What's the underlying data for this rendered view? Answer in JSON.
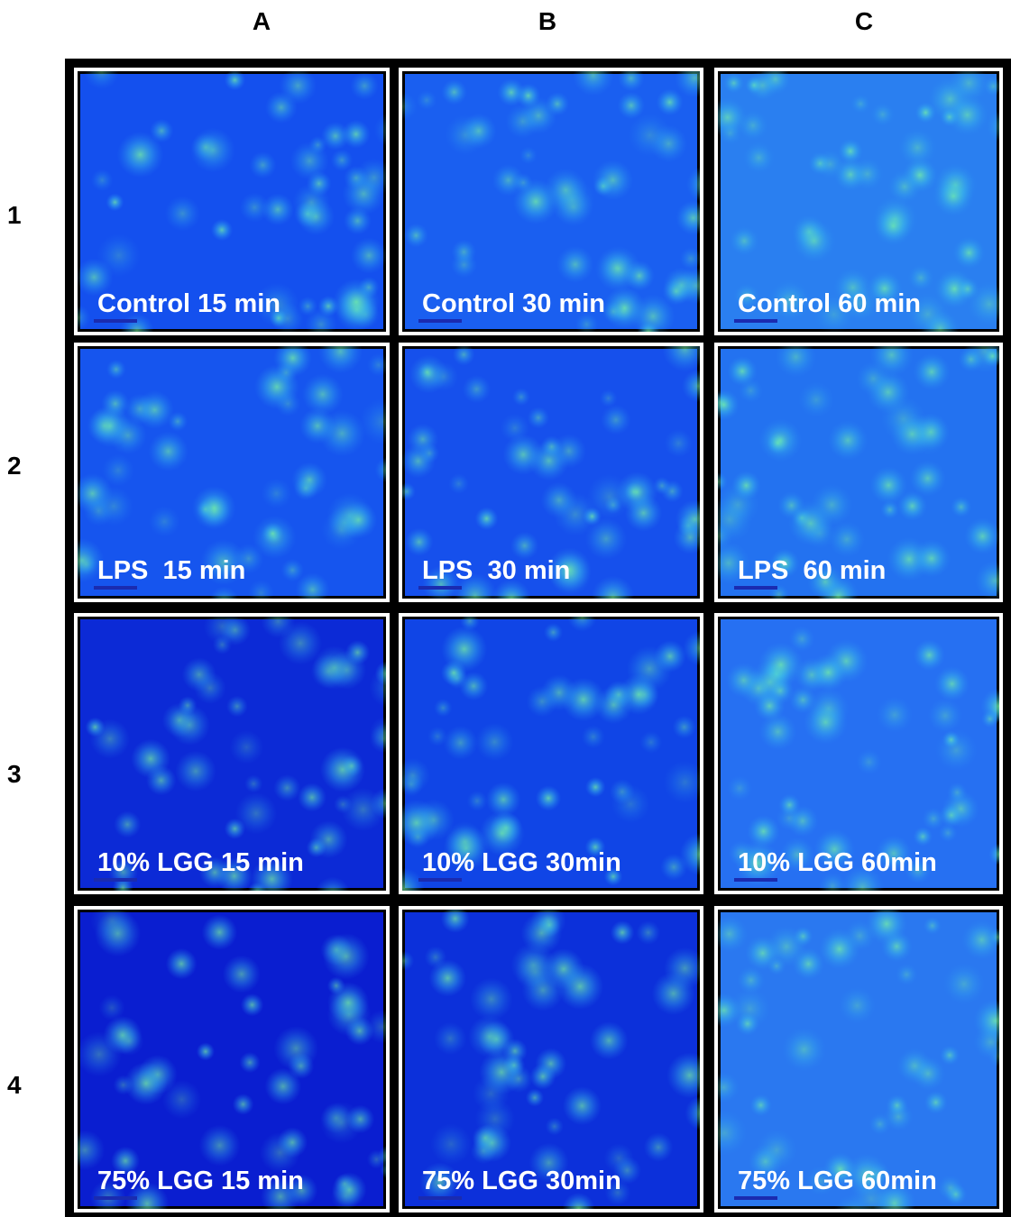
{
  "columns": [
    "A",
    "B",
    "C"
  ],
  "rows": [
    "1",
    "2",
    "3",
    "4"
  ],
  "panels": [
    [
      "Control 15 min",
      "Control 30 min",
      "Control 60 min"
    ],
    [
      "LPS  15 min",
      "LPS  30 min",
      "LPS  60 min"
    ],
    [
      "10% LGG 15 min",
      "10% LGG 30min",
      "10% LGG 60min"
    ],
    [
      "75% LGG 15 min",
      "75% LGG 30min",
      "75% LGG 60min"
    ]
  ]
}
